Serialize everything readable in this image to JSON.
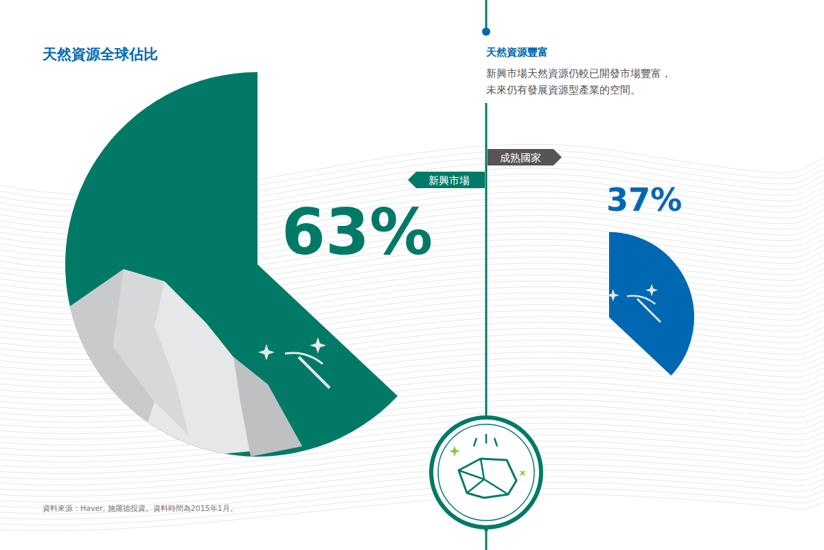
{
  "chart_data": {
    "type": "pie",
    "title": "天然資源全球佔比",
    "subtitle": "天然資源豐富",
    "annotations": [
      "新興市場天然資源仍較已開發市場豐富，",
      "未來仍有發展資源型產業的空間。"
    ],
    "categories": [
      "新興市場",
      "成熟國家"
    ],
    "values": [
      63,
      37
    ],
    "value_labels": [
      "63%",
      "37%"
    ],
    "colors": [
      "#007a67",
      "#0068b3"
    ],
    "data_labels": true,
    "source": "資料來源：Haver, 施羅德投資。資料時間為2015年1月。"
  }
}
